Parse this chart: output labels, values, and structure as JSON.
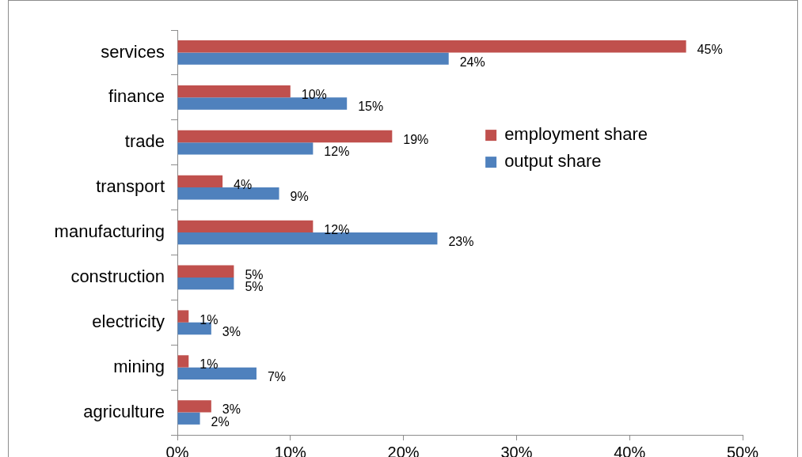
{
  "chart_data": {
    "type": "bar",
    "orientation": "horizontal",
    "categories": [
      "services",
      "finance",
      "trade",
      "transport",
      "manufacturing",
      "construction",
      "electricity",
      "mining",
      "agriculture"
    ],
    "series": [
      {
        "name": "employment share",
        "color": "#c0504d",
        "values": [
          45,
          10,
          19,
          4,
          12,
          5,
          1,
          1,
          3
        ],
        "value_labels": [
          "45%",
          "10%",
          "19%",
          "4%",
          "12%",
          "5%",
          "1%",
          "1%",
          "3%"
        ]
      },
      {
        "name": "output share",
        "color": "#4f81bd",
        "values": [
          24,
          15,
          12,
          9,
          23,
          5,
          3,
          7,
          2
        ],
        "value_labels": [
          "24%",
          "15%",
          "12%",
          "9%",
          "23%",
          "5%",
          "3%",
          "7%",
          "2%"
        ]
      }
    ],
    "xlim": [
      0,
      50
    ],
    "xticks": [
      {
        "value": 0,
        "label": "0%"
      },
      {
        "value": 10,
        "label": "10%"
      },
      {
        "value": 20,
        "label": "20%"
      },
      {
        "value": 30,
        "label": "30%"
      },
      {
        "value": 40,
        "label": "40%"
      },
      {
        "value": 50,
        "label": "50%"
      }
    ],
    "legend": "right"
  }
}
